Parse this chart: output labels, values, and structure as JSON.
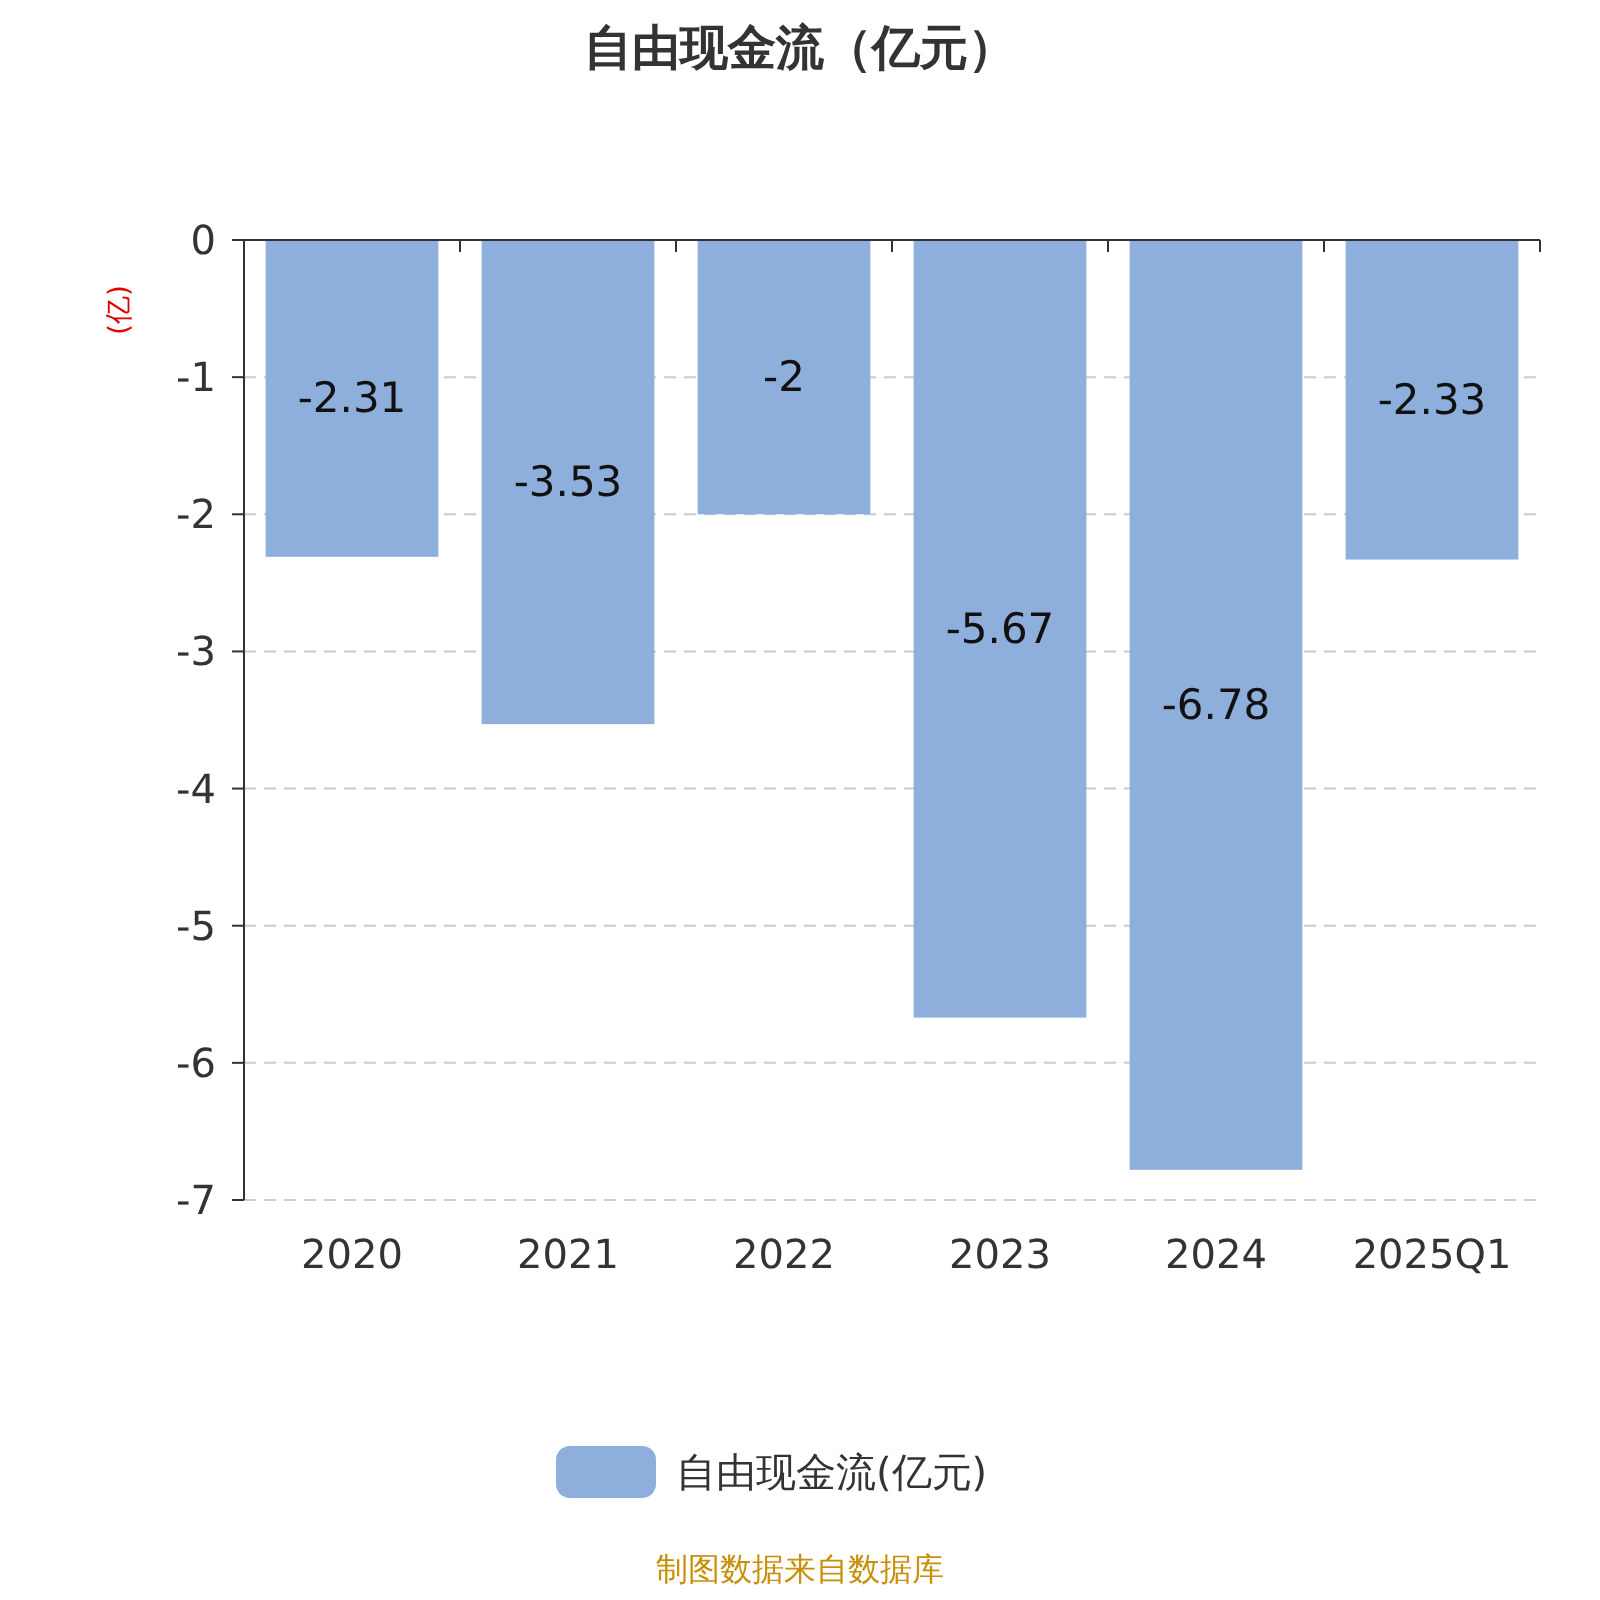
{
  "chart_data": {
    "type": "bar",
    "title": "自由现金流（亿元）",
    "ylabel": "(亿)",
    "categories": [
      "2020",
      "2021",
      "2022",
      "2023",
      "2024",
      "2025Q1"
    ],
    "series": [
      {
        "name": "自由现金流(亿元)",
        "color": "#8eaedb",
        "values": [
          -2.31,
          -3.53,
          -2,
          -5.67,
          -6.78,
          -2.33
        ]
      }
    ],
    "ylim": [
      -7,
      0
    ],
    "yticks": [
      0,
      -1,
      -2,
      -3,
      -4,
      -5,
      -6,
      -7
    ],
    "grid": "y",
    "legend": "bottom",
    "data_labels": true,
    "annotations": [
      "制图数据来自数据库"
    ]
  }
}
